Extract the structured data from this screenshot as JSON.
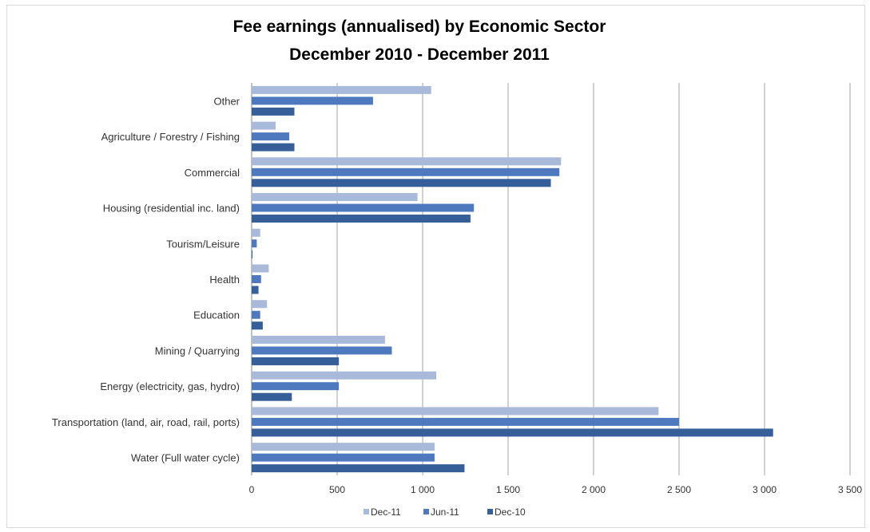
{
  "chart_data": {
    "type": "bar",
    "orientation": "horizontal",
    "title": "Fee earnings (annualised) by Economic Sector",
    "subtitle": "December 2010 - December 2011",
    "categories": [
      "Other",
      "Agriculture / Forestry / Fishing",
      "Commercial",
      "Housing (residential inc. land)",
      "Tourism/Leisure",
      "Health",
      "Education",
      "Mining / Quarrying",
      "Energy (electricity, gas, hydro)",
      "Transportation (land, air, road, rail, ports)",
      "Water (Full water cycle)"
    ],
    "series": [
      {
        "name": "Dec-11",
        "color": "#a9b9d9",
        "values": [
          1050,
          140,
          1810,
          970,
          50,
          100,
          90,
          780,
          1080,
          2380,
          1070
        ]
      },
      {
        "name": "Jun-11",
        "color": "#4f79bf",
        "values": [
          710,
          220,
          1800,
          1300,
          30,
          55,
          50,
          820,
          510,
          2500,
          1070
        ]
      },
      {
        "name": "Dec-10",
        "color": "#365f99",
        "values": [
          250,
          250,
          1750,
          1280,
          5,
          40,
          65,
          510,
          235,
          3050,
          1245
        ]
      }
    ],
    "xlim": [
      0,
      3500
    ],
    "xticks": [
      "0",
      "500",
      "1 000",
      "1 500",
      "2 000",
      "2 500",
      "3 000",
      "3 500"
    ],
    "grid": "vertical",
    "legend": "bottom",
    "xlabel": "",
    "ylabel": ""
  }
}
